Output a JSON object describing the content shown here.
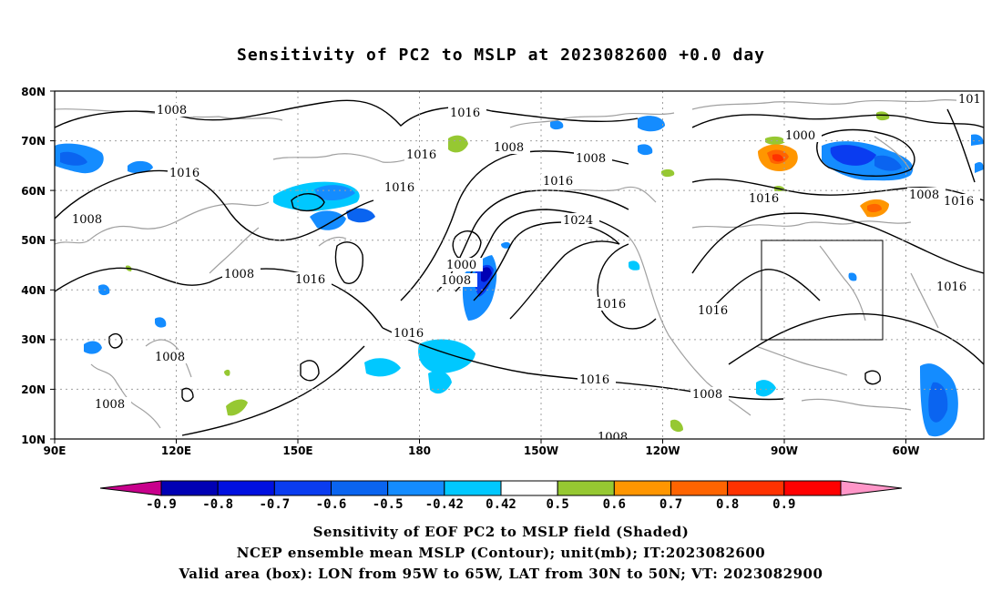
{
  "title": "Sensitivity of PC2 to MSLP at 2023082600 +0.0 day",
  "lat_ticks": [
    "80N",
    "70N",
    "60N",
    "50N",
    "40N",
    "30N",
    "20N",
    "10N"
  ],
  "lon_ticks": [
    "90E",
    "120E",
    "150E",
    "180",
    "150W",
    "120W",
    "90W",
    "60W"
  ],
  "contour_labels": [
    {
      "text": "1008",
      "name": "contour-label-1008-a"
    },
    {
      "text": "1016",
      "name": "contour-label-1016-a"
    },
    {
      "text": "1008",
      "name": "contour-label-1008-b"
    },
    {
      "text": "1016",
      "name": "contour-label-1016-b"
    },
    {
      "text": "1008",
      "name": "contour-label-1008-c"
    },
    {
      "text": "1016",
      "name": "contour-label-1016-c"
    },
    {
      "text": "1016",
      "name": "contour-label-1016-d"
    },
    {
      "text": "1008",
      "name": "contour-label-1008-d"
    },
    {
      "text": "1016",
      "name": "contour-label-1016-e"
    },
    {
      "text": "1008",
      "name": "contour-label-1008-e"
    },
    {
      "text": "1016",
      "name": "contour-label-1016-f"
    },
    {
      "text": "1024",
      "name": "contour-label-1024"
    },
    {
      "text": "1000",
      "name": "contour-label-1000-a"
    },
    {
      "text": "1008",
      "name": "contour-label-1008-f"
    },
    {
      "text": "1016",
      "name": "contour-label-1016-g"
    },
    {
      "text": "1016",
      "name": "contour-label-1016-h"
    },
    {
      "text": "1016",
      "name": "contour-label-1016-i"
    },
    {
      "text": "1008",
      "name": "contour-label-1008-g"
    },
    {
      "text": "1008",
      "name": "contour-label-1008-h"
    },
    {
      "text": "1000",
      "name": "contour-label-1000-b"
    },
    {
      "text": "1016",
      "name": "contour-label-1016-j"
    },
    {
      "text": "1008",
      "name": "contour-label-1008-i"
    },
    {
      "text": "1016",
      "name": "contour-label-1016-k"
    },
    {
      "text": "1016",
      "name": "contour-label-1016-l"
    },
    {
      "text": "1008",
      "name": "contour-label-1008-j"
    },
    {
      "text": "1008",
      "name": "contour-label-1008-k"
    },
    {
      "text": "1016",
      "name": "contour-label-1016-m"
    },
    {
      "text": "101",
      "name": "contour-label-101-edge"
    }
  ],
  "colorbar": {
    "labels": [
      "-0.9",
      "-0.8",
      "-0.7",
      "-0.6",
      "-0.5",
      "-0.42",
      "0.42",
      "0.5",
      "0.6",
      "0.7",
      "0.8",
      "0.9"
    ],
    "colors": [
      "#c8008c",
      "#0000b4",
      "#0010e0",
      "#0a3cf0",
      "#0a64f0",
      "#148cff",
      "#00c8ff",
      "#ffffff",
      "#96c832",
      "#ff9600",
      "#ff6400",
      "#ff3200",
      "#ff0000",
      "#ff96c8"
    ]
  },
  "shading_colors": {
    "neg_light": "#00c8ff",
    "neg_mid": "#148cff",
    "neg_strong": "#0a3cf0",
    "neg_max": "#0000b4",
    "pos_green": "#96c832",
    "pos_orange": "#ff9600",
    "pos_red": "#ff3200",
    "coastline": "#a0a0a0",
    "contour": "#000000",
    "grid": "#a0a0a0"
  },
  "captions": {
    "line1": "Sensitivity of EOF PC2 to MSLP field (Shaded)",
    "line2": "NCEP ensemble mean MSLP (Contour); unit(mb); IT:2023082600",
    "line3": "Valid area (box): LON from 95W to 65W, LAT from 30N to 50N; VT: 2023082900"
  },
  "valid_area": {
    "lon_min": -95,
    "lon_max": -65,
    "lat_min": 30,
    "lat_max": 50
  }
}
